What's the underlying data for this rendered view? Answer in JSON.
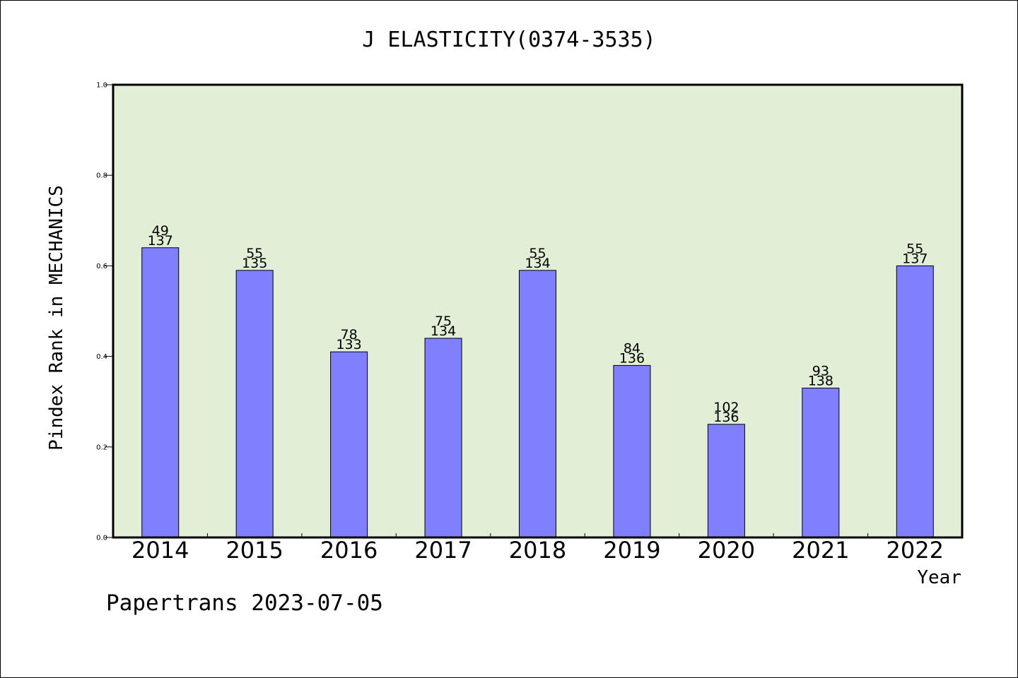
{
  "chart_data": {
    "type": "bar",
    "title": "J ELASTICITY(0374-3535)",
    "xlabel": "Year",
    "ylabel": "Pindex Rank in MECHANICS",
    "categories": [
      "2014",
      "2015",
      "2016",
      "2017",
      "2018",
      "2019",
      "2020",
      "2021",
      "2022"
    ],
    "values": [
      0.64,
      0.59,
      0.41,
      0.44,
      0.59,
      0.38,
      0.25,
      0.33,
      0.6
    ],
    "rank_labels": [
      "49",
      "55",
      "78",
      "75",
      "55",
      "84",
      "102",
      "93",
      "55"
    ],
    "total_labels": [
      "137",
      "135",
      "133",
      "134",
      "134",
      "136",
      "136",
      "138",
      "137"
    ],
    "ylim": [
      0,
      1.0
    ],
    "yticks": [
      "0.0",
      "0.2",
      "0.4",
      "0.6",
      "0.8",
      "1.0"
    ],
    "grid": false,
    "colors": {
      "bar": "#8080ff",
      "plot_background": "#e2efd6",
      "axis": "#000000"
    }
  },
  "footer": "Papertrans 2023-07-05"
}
